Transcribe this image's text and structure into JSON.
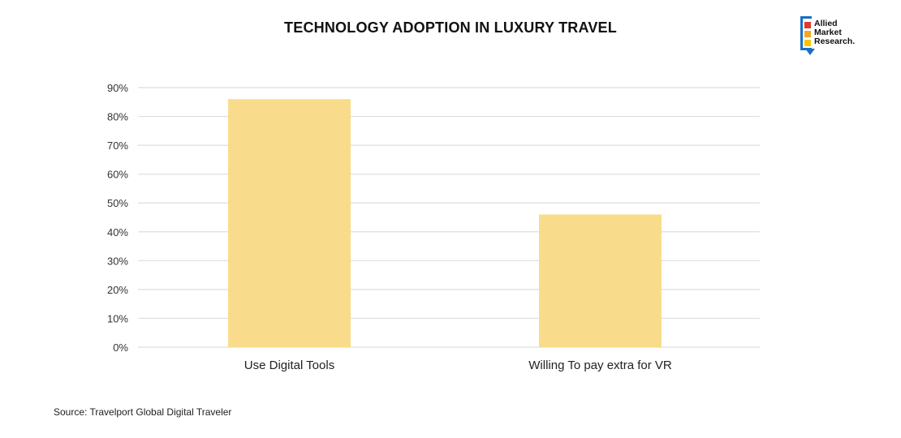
{
  "logo": {
    "lines": [
      "Allied",
      "Market",
      "Research."
    ],
    "colors": {
      "frame": "#1a6fc4",
      "red": "#e0392b",
      "orange": "#f5a623",
      "yellow": "#f7c600"
    }
  },
  "source": "Source: Travelport Global Digital Traveler",
  "chart_data": {
    "type": "bar",
    "title": "TECHNOLOGY ADOPTION IN LUXURY TRAVEL",
    "categories": [
      "Use Digital Tools",
      "Willing To pay extra for VR"
    ],
    "values": [
      86,
      46
    ],
    "unit": "%",
    "ylim": [
      0,
      90
    ],
    "yticks": [
      0,
      10,
      20,
      30,
      40,
      50,
      60,
      70,
      80,
      90
    ],
    "ytick_labels": [
      "0%",
      "10%",
      "20%",
      "30%",
      "40%",
      "50%",
      "60%",
      "70%",
      "80%",
      "90%"
    ],
    "grid": true,
    "bar_color": "#f9dc8b",
    "grid_color": "#dedede"
  }
}
